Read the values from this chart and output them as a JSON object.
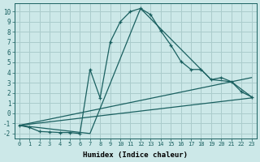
{
  "xlabel": "Humidex (Indice chaleur)",
  "background_color": "#cce8e8",
  "grid_color": "#aacccc",
  "line_color": "#1a6060",
  "xlim": [
    -0.5,
    23.5
  ],
  "ylim": [
    -2.5,
    10.8
  ],
  "xticks": [
    0,
    1,
    2,
    3,
    4,
    5,
    6,
    7,
    8,
    9,
    10,
    11,
    12,
    13,
    14,
    15,
    16,
    17,
    18,
    19,
    20,
    21,
    22,
    23
  ],
  "yticks": [
    -2,
    -1,
    0,
    1,
    2,
    3,
    4,
    5,
    6,
    7,
    8,
    9,
    10
  ],
  "main_x": [
    0,
    1,
    2,
    3,
    4,
    5,
    6,
    7,
    8,
    9,
    10,
    11,
    12,
    13,
    14,
    15,
    16,
    17,
    18,
    19,
    20,
    21,
    22,
    23
  ],
  "main_y": [
    -1.2,
    -1.4,
    -1.8,
    -1.85,
    -1.9,
    -1.9,
    -2.0,
    4.3,
    1.5,
    7.0,
    9.0,
    10.0,
    10.3,
    9.7,
    8.1,
    6.7,
    5.1,
    4.3,
    4.3,
    3.3,
    3.5,
    3.1,
    2.1,
    1.6
  ],
  "line1_x": [
    0,
    7,
    12,
    19,
    21,
    23
  ],
  "line1_y": [
    -1.2,
    -2.0,
    10.3,
    3.3,
    3.1,
    1.6
  ],
  "line2_x": [
    0,
    23
  ],
  "line2_y": [
    -1.2,
    3.5
  ],
  "line3_x": [
    0,
    23
  ],
  "line3_y": [
    -1.2,
    1.5
  ]
}
